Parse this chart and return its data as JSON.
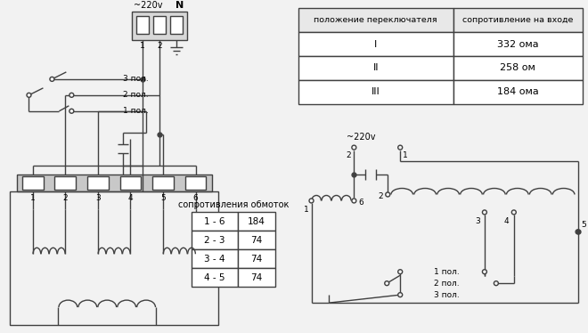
{
  "bg_color": "#f2f2f2",
  "line_color": "#404040",
  "table1_header": [
    "положение переключателя",
    "сопротивление на входе"
  ],
  "table1_rows": [
    [
      "I",
      "332 ома"
    ],
    [
      "II",
      "258 ом"
    ],
    [
      "III",
      "184 ома"
    ]
  ],
  "table2_header": "сопротивления обмоток",
  "table2_rows": [
    [
      "1 - 6",
      "184"
    ],
    [
      "2 - 3",
      "74"
    ],
    [
      "3 - 4",
      "74"
    ],
    [
      "4 - 5",
      "74"
    ]
  ],
  "voltage_label": "~220v",
  "neutral_label": "N",
  "pos_labels_left": [
    "3 пол.",
    "2 пол.",
    "1 пол."
  ],
  "pos_labels_right": [
    "1 пол.",
    "2 пол.",
    "3 пол."
  ]
}
